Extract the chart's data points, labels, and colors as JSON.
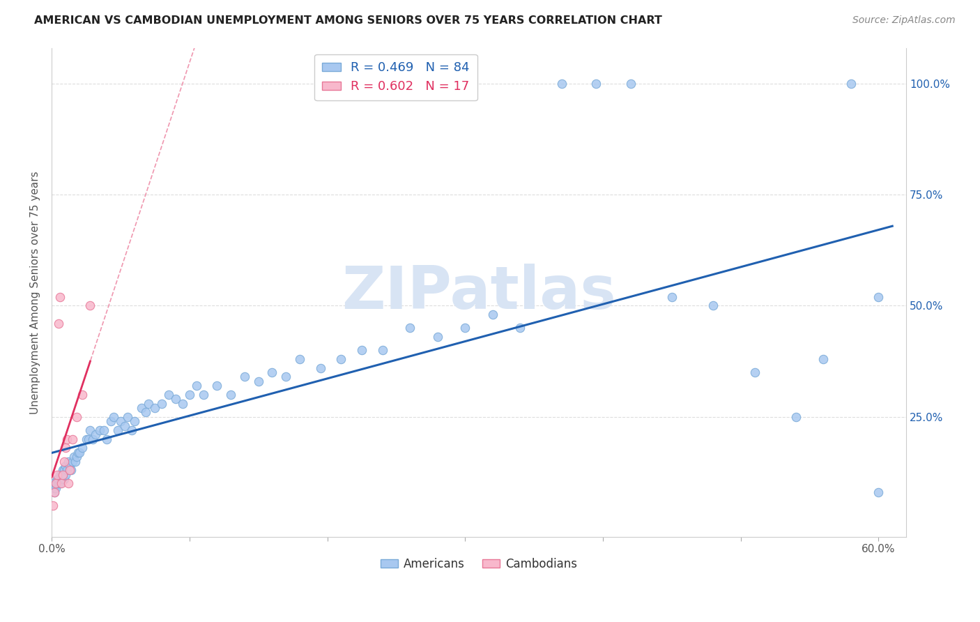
{
  "title": "AMERICAN VS CAMBODIAN UNEMPLOYMENT AMONG SENIORS OVER 75 YEARS CORRELATION CHART",
  "source": "Source: ZipAtlas.com",
  "ylabel": "Unemployment Among Seniors over 75 years",
  "xlim": [
    0.0,
    0.62
  ],
  "ylim": [
    -0.02,
    1.08
  ],
  "american_color": "#A8C8F0",
  "american_edge_color": "#7AAAD8",
  "cambodian_color": "#F8B8CC",
  "cambodian_edge_color": "#E87898",
  "american_line_color": "#2060B0",
  "cambodian_line_color": "#E03060",
  "american_R": 0.469,
  "american_N": 84,
  "cambodian_R": 0.602,
  "cambodian_N": 17,
  "watermark": "ZIPatlas",
  "watermark_color": "#D8E4F4",
  "background_color": "#FFFFFF",
  "grid_color": "#DDDDDD",
  "marker_size": 80,
  "americans_x": [
    0.001,
    0.002,
    0.002,
    0.003,
    0.003,
    0.004,
    0.004,
    0.005,
    0.005,
    0.006,
    0.006,
    0.007,
    0.007,
    0.008,
    0.008,
    0.009,
    0.009,
    0.01,
    0.01,
    0.011,
    0.012,
    0.013,
    0.014,
    0.015,
    0.016,
    0.017,
    0.018,
    0.019,
    0.02,
    0.022,
    0.025,
    0.027,
    0.028,
    0.03,
    0.032,
    0.035,
    0.038,
    0.04,
    0.043,
    0.045,
    0.048,
    0.05,
    0.053,
    0.055,
    0.058,
    0.06,
    0.065,
    0.068,
    0.07,
    0.075,
    0.08,
    0.085,
    0.09,
    0.095,
    0.1,
    0.105,
    0.11,
    0.12,
    0.13,
    0.14,
    0.15,
    0.16,
    0.17,
    0.18,
    0.195,
    0.21,
    0.225,
    0.24,
    0.26,
    0.28,
    0.3,
    0.32,
    0.34,
    0.37,
    0.395,
    0.42,
    0.45,
    0.48,
    0.51,
    0.54,
    0.56,
    0.58,
    0.6,
    0.6
  ],
  "americans_y": [
    0.1,
    0.08,
    0.09,
    0.09,
    0.1,
    0.1,
    0.11,
    0.1,
    0.11,
    0.1,
    0.12,
    0.11,
    0.12,
    0.12,
    0.13,
    0.11,
    0.13,
    0.12,
    0.14,
    0.13,
    0.15,
    0.14,
    0.13,
    0.15,
    0.16,
    0.15,
    0.16,
    0.17,
    0.17,
    0.18,
    0.2,
    0.2,
    0.22,
    0.2,
    0.21,
    0.22,
    0.22,
    0.2,
    0.24,
    0.25,
    0.22,
    0.24,
    0.23,
    0.25,
    0.22,
    0.24,
    0.27,
    0.26,
    0.28,
    0.27,
    0.28,
    0.3,
    0.29,
    0.28,
    0.3,
    0.32,
    0.3,
    0.32,
    0.3,
    0.34,
    0.33,
    0.35,
    0.34,
    0.38,
    0.36,
    0.38,
    0.4,
    0.4,
    0.45,
    0.43,
    0.45,
    0.48,
    0.45,
    1.0,
    1.0,
    1.0,
    0.52,
    0.5,
    0.35,
    0.25,
    0.38,
    1.0,
    0.52,
    0.08
  ],
  "cambodians_x": [
    0.001,
    0.002,
    0.003,
    0.004,
    0.005,
    0.006,
    0.007,
    0.008,
    0.009,
    0.01,
    0.011,
    0.012,
    0.013,
    0.015,
    0.018,
    0.022,
    0.028
  ],
  "cambodians_y": [
    0.05,
    0.08,
    0.1,
    0.12,
    0.46,
    0.52,
    0.1,
    0.12,
    0.15,
    0.18,
    0.2,
    0.1,
    0.13,
    0.2,
    0.25,
    0.3,
    0.5
  ],
  "cam_line_x0": 0.0,
  "cam_line_x1": 0.045,
  "am_line_y0": 0.05,
  "am_line_y1": 0.52
}
